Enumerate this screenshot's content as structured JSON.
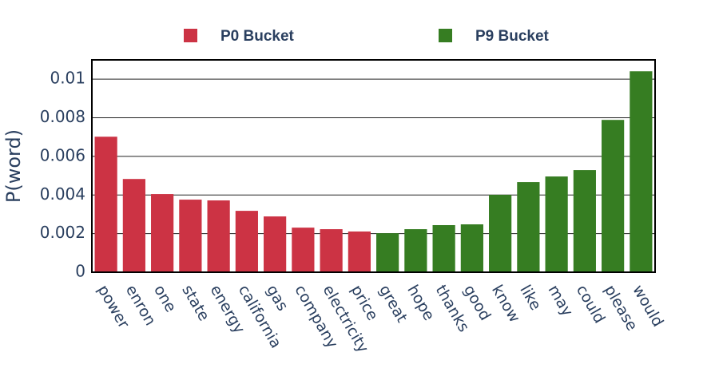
{
  "chart_data": {
    "type": "bar",
    "y_label": "P(word)",
    "categories": [
      "power",
      "enron",
      "one",
      "state",
      "energy",
      "california",
      "gas",
      "company",
      "electricity",
      "price",
      "great",
      "hope",
      "thanks",
      "good",
      "know",
      "like",
      "may",
      "could",
      "please",
      "would"
    ],
    "series": [
      {
        "name": "P0 Bucket",
        "color": "#cc3344",
        "values": [
          0.00702,
          0.00483,
          0.00405,
          0.00376,
          0.00372,
          0.00318,
          0.00289,
          0.00231,
          0.00223,
          0.00211,
          null,
          null,
          null,
          null,
          null,
          null,
          null,
          null,
          null,
          null
        ]
      },
      {
        "name": "P9 Bucket",
        "color": "#367d22",
        "values": [
          null,
          null,
          null,
          null,
          null,
          null,
          null,
          null,
          null,
          null,
          0.00202,
          0.00223,
          0.00244,
          0.00248,
          0.00401,
          0.00467,
          0.00496,
          0.00529,
          0.00789,
          0.01041
        ]
      }
    ],
    "ylim": [
      0,
      0.011
    ],
    "yticks": [
      0,
      0.002,
      0.004,
      0.006,
      0.008,
      0.01
    ],
    "grid": true
  }
}
